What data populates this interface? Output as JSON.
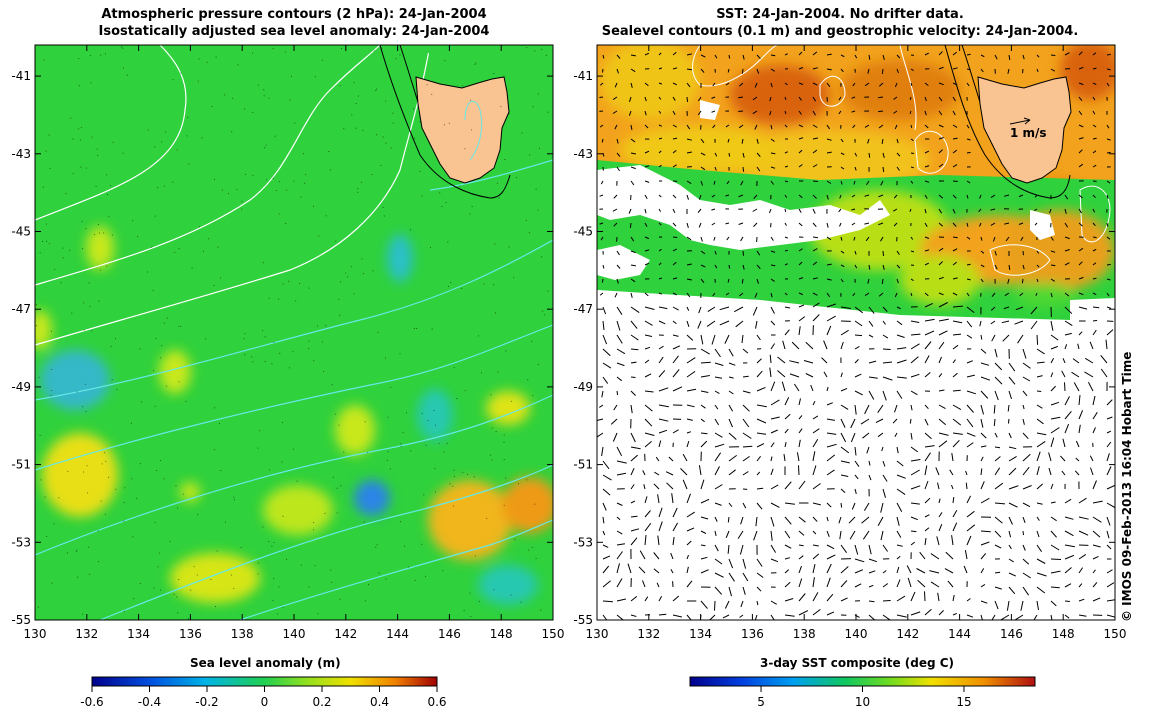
{
  "left_panel": {
    "title_line1": "Atmospheric pressure contours (2 hPa): 24-Jan-2004",
    "title_line2": "Isostatically adjusted sea level anomaly: 24-Jan-2004",
    "colorbar_label": "Sea level anomaly (m)",
    "colorbar_ticks": [
      "-0.6",
      "-0.4",
      "-0.2",
      "0",
      "0.2",
      "0.4",
      "0.6"
    ]
  },
  "right_panel": {
    "title_line1": "SST: 24-Jan-2004. No drifter data.",
    "title_line2": "Sealevel contours (0.1 m) and geostrophic velocity: 24-Jan-2004.",
    "colorbar_label": "3-day SST composite (deg C)",
    "colorbar_ticks": [
      "5",
      "10",
      "15"
    ],
    "velocity_scale_label": "1 m/s"
  },
  "axes": {
    "x_ticks": [
      "130",
      "132",
      "134",
      "136",
      "138",
      "140",
      "142",
      "144",
      "146",
      "148",
      "150"
    ],
    "y_ticks": [
      "-41",
      "-43",
      "-45",
      "-47",
      "-49",
      "-51",
      "-53",
      "-55"
    ],
    "lon_range": [
      130,
      150
    ],
    "lat_range": [
      -40.2,
      -55
    ]
  },
  "credit": "© IMOS 09-Feb-2013 16:04 Hobart Time",
  "colors": {
    "ocean_green": "#2fd13c",
    "land": "#f9c392",
    "sst_orange": "#f2a21c",
    "sst_red": "#d9640f"
  }
}
